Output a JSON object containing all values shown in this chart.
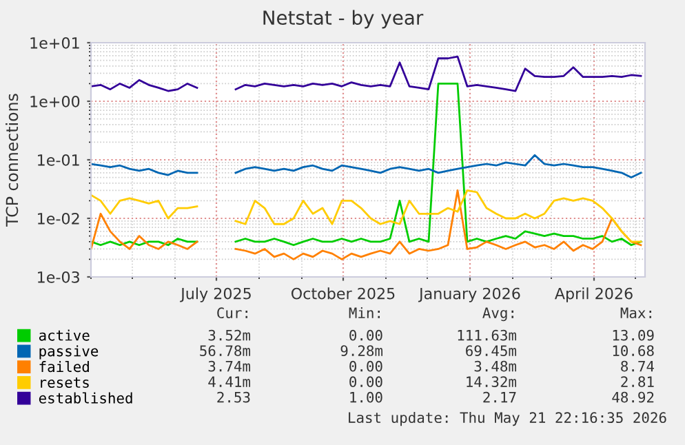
{
  "chart_data": {
    "type": "line",
    "title": "Netstat - by year",
    "ylabel": "TCP connections",
    "x": [
      "2025-04-01",
      "2025-04-08",
      "2025-04-15",
      "2025-04-22",
      "2025-04-29",
      "2025-05-06",
      "2025-05-13",
      "2025-05-20",
      "2025-05-27",
      "2025-06-03",
      "2025-06-10",
      "2025-06-17",
      "2025-06-24",
      "2025-07-01",
      "2025-07-08",
      "2025-07-15",
      "2025-07-22",
      "2025-07-29",
      "2025-08-05",
      "2025-08-12",
      "2025-08-19",
      "2025-08-26",
      "2025-09-02",
      "2025-09-09",
      "2025-09-16",
      "2025-09-23",
      "2025-09-30",
      "2025-10-07",
      "2025-10-14",
      "2025-10-21",
      "2025-10-28",
      "2025-11-04",
      "2025-11-11",
      "2025-11-18",
      "2025-11-25",
      "2025-12-02",
      "2025-12-09",
      "2025-12-16",
      "2025-12-23",
      "2025-12-30",
      "2026-01-06",
      "2026-01-13",
      "2026-01-20",
      "2026-01-27",
      "2026-02-03",
      "2026-02-10",
      "2026-02-17",
      "2026-02-24",
      "2026-03-03",
      "2026-03-10",
      "2026-03-17",
      "2026-03-24",
      "2026-03-31",
      "2026-04-07",
      "2026-04-14",
      "2026-04-21",
      "2026-04-28",
      "2026-05-05"
    ],
    "series": [
      {
        "name": "active",
        "color": "#00cc00",
        "values": [
          0.004,
          0.0035,
          0.004,
          0.0035,
          0.004,
          0.0035,
          0.004,
          0.004,
          0.0035,
          0.0045,
          0.004,
          0.004,
          null,
          null,
          null,
          0.004,
          0.0045,
          0.004,
          0.004,
          0.0045,
          0.004,
          0.0035,
          0.004,
          0.0045,
          0.004,
          0.004,
          0.0045,
          0.004,
          0.0045,
          0.004,
          0.004,
          0.0045,
          0.02,
          0.004,
          0.0045,
          0.004,
          2.0,
          2.0,
          2.0,
          0.004,
          0.0045,
          0.004,
          0.0045,
          0.005,
          0.0045,
          0.006,
          0.0055,
          0.005,
          0.0055,
          0.005,
          0.005,
          0.0045,
          0.0045,
          0.005,
          0.004,
          0.0045,
          0.0035,
          0.004
        ]
      },
      {
        "name": "passive",
        "color": "#0066b3",
        "values": [
          0.085,
          0.08,
          0.075,
          0.08,
          0.07,
          0.065,
          0.07,
          0.06,
          0.055,
          0.065,
          0.06,
          0.06,
          null,
          null,
          null,
          0.06,
          0.07,
          0.075,
          0.07,
          0.065,
          0.07,
          0.065,
          0.075,
          0.08,
          0.07,
          0.065,
          0.08,
          0.075,
          0.07,
          0.065,
          0.06,
          0.07,
          0.075,
          0.07,
          0.065,
          0.07,
          0.06,
          0.065,
          0.07,
          0.075,
          0.08,
          0.085,
          0.08,
          0.09,
          0.085,
          0.08,
          0.12,
          0.085,
          0.08,
          0.085,
          0.08,
          0.075,
          0.075,
          0.07,
          0.065,
          0.06,
          0.05,
          0.06
        ]
      },
      {
        "name": "failed",
        "color": "#ff8000",
        "values": [
          0.003,
          0.012,
          0.006,
          0.004,
          0.003,
          0.005,
          0.0035,
          0.003,
          0.004,
          0.0035,
          0.003,
          0.004,
          null,
          null,
          null,
          0.003,
          0.0028,
          0.0025,
          0.003,
          0.0022,
          0.0025,
          0.002,
          0.0025,
          0.0022,
          0.0028,
          0.0025,
          0.002,
          0.0025,
          0.0022,
          0.0025,
          0.0028,
          0.0025,
          0.004,
          0.0025,
          0.003,
          0.0028,
          0.003,
          0.0035,
          0.03,
          0.003,
          0.0032,
          0.004,
          0.0035,
          0.003,
          0.0035,
          0.004,
          0.0032,
          0.0035,
          0.003,
          0.004,
          0.0028,
          0.0035,
          0.003,
          0.004,
          0.01,
          0.006,
          0.004,
          0.0035
        ]
      },
      {
        "name": "resets",
        "color": "#ffcc00",
        "values": [
          0.025,
          0.02,
          0.012,
          0.02,
          0.022,
          0.02,
          0.018,
          0.02,
          0.01,
          0.015,
          0.015,
          0.016,
          null,
          null,
          null,
          0.009,
          0.008,
          0.02,
          0.015,
          0.008,
          0.008,
          0.01,
          0.02,
          0.012,
          0.015,
          0.008,
          0.02,
          0.02,
          0.015,
          0.01,
          0.008,
          0.009,
          0.008,
          0.02,
          0.012,
          0.012,
          0.012,
          0.015,
          0.013,
          0.03,
          0.028,
          0.015,
          0.012,
          0.01,
          0.01,
          0.012,
          0.01,
          0.012,
          0.02,
          0.022,
          0.02,
          0.022,
          0.02,
          0.015,
          0.01,
          0.006,
          0.004,
          0.004
        ]
      },
      {
        "name": "established",
        "color": "#330099",
        "values": [
          1.8,
          1.9,
          1.6,
          2.0,
          1.7,
          2.3,
          1.9,
          1.7,
          1.5,
          1.6,
          2.0,
          1.7,
          null,
          null,
          null,
          1.6,
          1.9,
          1.8,
          2.0,
          1.9,
          1.8,
          1.9,
          1.8,
          2.0,
          1.9,
          2.0,
          1.8,
          2.1,
          1.9,
          1.8,
          1.9,
          1.8,
          4.6,
          1.8,
          1.7,
          1.6,
          5.4,
          5.4,
          5.8,
          1.8,
          1.9,
          1.8,
          1.7,
          1.6,
          1.5,
          3.6,
          2.7,
          2.6,
          2.6,
          2.7,
          3.8,
          2.6,
          2.6,
          2.6,
          2.7,
          2.6,
          2.8,
          2.7
        ]
      }
    ],
    "log": "y",
    "ylim": [
      0.001,
      10
    ],
    "yticks": [
      {
        "value": 0.001,
        "label": "1e-03"
      },
      {
        "value": 0.01,
        "label": "1e-02"
      },
      {
        "value": 0.1,
        "label": "1e-01"
      },
      {
        "value": 1,
        "label": "1e+00"
      },
      {
        "value": 10,
        "label": "1e+01"
      }
    ],
    "xlim": [
      "2025-04-01",
      "2026-05-08"
    ],
    "xticks": [
      {
        "value": "2025-07-01",
        "label": "July 2025"
      },
      {
        "value": "2025-10-01",
        "label": "October 2025"
      },
      {
        "value": "2026-01-01",
        "label": "January 2026"
      },
      {
        "value": "2026-04-01",
        "label": "April 2026"
      }
    ],
    "grid": true,
    "legend": "bottom left",
    "marker": "none",
    "line_style": "solid",
    "annotations": [
      "Cur:",
      "Min:",
      "Avg:",
      "Max:",
      "3.52m",
      "0.00",
      "111.63m",
      "13.09",
      "56.78m",
      "9.28m",
      "69.45m",
      "10.68",
      "3.74m",
      "0.00",
      "3.48m",
      "8.74",
      "4.41m",
      "0.00",
      "14.32m",
      "2.81",
      "2.53",
      "1.00",
      "2.17",
      "48.92",
      "Last update: Thu May 21 22:16:35 2026"
    ]
  }
}
